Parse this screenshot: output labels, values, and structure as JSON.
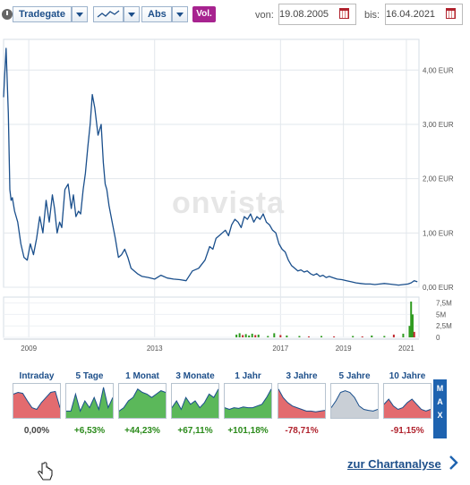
{
  "toolbar": {
    "exchange": "Tradegate",
    "scale": "Abs",
    "volume_button": "Vol.",
    "from_label": "von:",
    "from_date": "19.08.2005",
    "to_label": "bis:",
    "to_date": "16.04.2021"
  },
  "watermark": "onvista",
  "colors": {
    "price_line": "#1a4f8c",
    "volume_up": "#2e9b1f",
    "volume_down": "#c0282d",
    "accent": "#a7238f",
    "tile_label": "#1d4f8a",
    "positive": "#2a8a1a",
    "negative": "#b0222d"
  },
  "chart_data": {
    "type": "line",
    "x_unit": "year",
    "y_unit": "EUR",
    "ylim": [
      0,
      4.4
    ],
    "y_ticks": [
      "4,00 EUR",
      "3,00 EUR",
      "2,00 EUR",
      "1,00 EUR",
      "0,00 EUR"
    ],
    "y_tick_values": [
      4,
      3,
      2,
      1,
      0
    ],
    "x_ticks": [
      "2009",
      "2013",
      "2017",
      "2019",
      "2021"
    ],
    "x_tick_values": [
      2008.9,
      2012.9,
      2016.9,
      2018.9,
      2020.9
    ],
    "xlim": [
      2008.1,
      2021.3
    ],
    "grid": true,
    "series": [
      {
        "x": [
          2008.1,
          2008.18,
          2008.25,
          2008.3,
          2008.34,
          2008.38,
          2008.45,
          2008.55,
          2008.65,
          2008.75,
          2008.85,
          2008.95,
          2009.05,
          2009.15,
          2009.25,
          2009.35,
          2009.45,
          2009.55,
          2009.65,
          2009.72,
          2009.8,
          2009.88,
          2009.95,
          2010.05,
          2010.15,
          2010.25,
          2010.32,
          2010.4,
          2010.48,
          2010.55,
          2010.63,
          2010.7,
          2010.78,
          2010.85,
          2010.92,
          2011.0,
          2011.1,
          2011.2,
          2011.27,
          2011.33,
          2011.38,
          2011.45,
          2011.55,
          2011.65,
          2011.75,
          2011.85,
          2011.95,
          2012.05,
          2012.15,
          2012.25,
          2012.35,
          2012.5,
          2012.7,
          2012.9,
          2013.1,
          2013.3,
          2013.5,
          2013.7,
          2013.9,
          2014.1,
          2014.3,
          2014.5,
          2014.65,
          2014.75,
          2014.85,
          2014.95,
          2015.05,
          2015.15,
          2015.25,
          2015.35,
          2015.45,
          2015.55,
          2015.65,
          2015.75,
          2015.85,
          2015.95,
          2016.05,
          2016.15,
          2016.25,
          2016.35,
          2016.45,
          2016.55,
          2016.65,
          2016.75,
          2016.85,
          2016.95,
          2017.05,
          2017.15,
          2017.25,
          2017.35,
          2017.45,
          2017.55,
          2017.65,
          2017.75,
          2017.85,
          2017.95,
          2018.05,
          2018.15,
          2018.25,
          2018.35,
          2018.45,
          2018.55,
          2018.7,
          2018.85,
          2019.0,
          2019.15,
          2019.3,
          2019.45,
          2019.6,
          2019.75,
          2019.9,
          2020.05,
          2020.2,
          2020.35,
          2020.5,
          2020.65,
          2020.8,
          2020.95,
          2021.05,
          2021.15,
          2021.25
        ],
        "y": [
          3.5,
          4.4,
          3.2,
          1.8,
          1.6,
          1.65,
          1.4,
          1.2,
          0.8,
          0.55,
          0.5,
          0.8,
          0.6,
          0.9,
          1.3,
          1.0,
          1.6,
          1.2,
          1.7,
          1.45,
          1.0,
          1.2,
          1.1,
          1.8,
          1.9,
          1.45,
          1.7,
          1.3,
          1.4,
          1.35,
          1.8,
          2.1,
          2.6,
          3.0,
          3.55,
          3.3,
          2.8,
          3.0,
          2.3,
          1.9,
          1.8,
          1.5,
          1.2,
          0.9,
          0.55,
          0.6,
          0.7,
          0.55,
          0.35,
          0.3,
          0.25,
          0.2,
          0.18,
          0.15,
          0.22,
          0.17,
          0.15,
          0.14,
          0.12,
          0.3,
          0.35,
          0.5,
          0.75,
          0.7,
          0.9,
          0.95,
          1.0,
          1.05,
          0.95,
          1.15,
          1.25,
          1.2,
          1.1,
          1.3,
          1.25,
          1.35,
          1.2,
          1.3,
          1.25,
          1.35,
          1.2,
          1.15,
          1.05,
          1.0,
          0.8,
          0.7,
          0.65,
          0.5,
          0.4,
          0.35,
          0.3,
          0.32,
          0.28,
          0.3,
          0.25,
          0.22,
          0.25,
          0.2,
          0.22,
          0.18,
          0.2,
          0.18,
          0.15,
          0.14,
          0.12,
          0.1,
          0.08,
          0.07,
          0.06,
          0.06,
          0.05,
          0.06,
          0.07,
          0.06,
          0.05,
          0.04,
          0.05,
          0.06,
          0.08,
          0.12,
          0.1
        ]
      }
    ],
    "volume": {
      "ylim": [
        0,
        8
      ],
      "y_ticks": [
        "7,5M",
        "5M",
        "2,5M",
        "0"
      ],
      "y_tick_values": [
        7.5,
        5,
        2.5,
        0
      ],
      "x": [
        2015.5,
        2015.6,
        2015.7,
        2015.8,
        2015.9,
        2016.0,
        2016.1,
        2016.2,
        2016.5,
        2016.7,
        2016.9,
        2017.1,
        2017.5,
        2017.8,
        2018.2,
        2018.6,
        2019.2,
        2019.5,
        2019.8,
        2020.2,
        2020.5,
        2020.8,
        2021.0,
        2021.05,
        2021.1,
        2021.15
      ],
      "values": [
        0.6,
        0.9,
        0.5,
        0.7,
        0.4,
        0.8,
        0.5,
        0.6,
        0.3,
        0.9,
        0.5,
        0.4,
        0.3,
        0.2,
        0.3,
        0.2,
        0.3,
        0.2,
        0.4,
        0.3,
        0.6,
        0.8,
        2.5,
        7.8,
        5.0,
        1.2
      ],
      "direction": [
        "up",
        "up",
        "down",
        "up",
        "up",
        "up",
        "down",
        "up",
        "up",
        "up",
        "down",
        "up",
        "up",
        "down",
        "up",
        "down",
        "up",
        "down",
        "up",
        "up",
        "down",
        "up",
        "up",
        "up",
        "up",
        "down"
      ]
    }
  },
  "tiles": [
    {
      "label": "Intraday",
      "change": "0,00%",
      "trend": "negative",
      "points": [
        0.7,
        0.75,
        0.72,
        0.5,
        0.3,
        0.25,
        0.45,
        0.6,
        0.75,
        0.78,
        0.3
      ]
    },
    {
      "label": "5 Tage",
      "change": "+6,53%",
      "trend": "positive",
      "points": [
        0.2,
        0.2,
        0.7,
        0.2,
        0.5,
        0.3,
        0.6,
        0.25,
        0.9,
        0.3,
        0.6
      ]
    },
    {
      "label": "1 Monat",
      "change": "+44,23%",
      "trend": "positive",
      "points": [
        0.2,
        0.3,
        0.5,
        0.6,
        0.85,
        0.75,
        0.7,
        0.6,
        0.7,
        0.8,
        0.75
      ]
    },
    {
      "label": "3 Monate",
      "change": "+67,11%",
      "trend": "positive",
      "points": [
        0.3,
        0.5,
        0.25,
        0.6,
        0.4,
        0.5,
        0.3,
        0.45,
        0.7,
        0.6,
        0.85
      ]
    },
    {
      "label": "1 Jahr",
      "change": "+101,18%",
      "trend": "positive",
      "points": [
        0.3,
        0.25,
        0.3,
        0.28,
        0.32,
        0.3,
        0.3,
        0.35,
        0.4,
        0.6,
        0.85
      ]
    },
    {
      "label": "3 Jahre",
      "change": "-78,71%",
      "trend": "negative",
      "points": [
        0.85,
        0.6,
        0.45,
        0.35,
        0.3,
        0.25,
        0.2,
        0.2,
        0.18,
        0.2,
        0.22
      ]
    },
    {
      "label": "5 Jahre",
      "change": "",
      "trend": "neutral",
      "points": [
        0.3,
        0.5,
        0.75,
        0.8,
        0.75,
        0.6,
        0.35,
        0.25,
        0.22,
        0.2,
        0.25
      ]
    },
    {
      "label": "10 Jahre",
      "change": "-91,15%",
      "trend": "negative",
      "points": [
        0.4,
        0.55,
        0.35,
        0.25,
        0.3,
        0.45,
        0.55,
        0.4,
        0.25,
        0.2,
        0.25
      ]
    }
  ],
  "max_button": "MAX",
  "analysis_link": "zur Chartanalyse"
}
